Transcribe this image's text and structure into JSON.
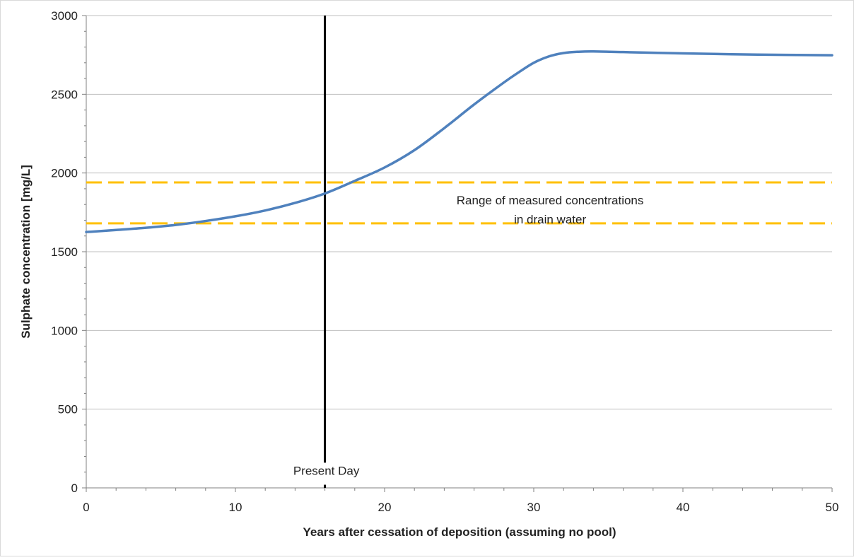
{
  "chart_data": {
    "type": "line",
    "title": "",
    "xlabel": "Years after cessation of deposition (assuming no pool)",
    "ylabel": "Sulphate concentration [mg/L]",
    "xlim": [
      0,
      50
    ],
    "ylim": [
      0,
      3000
    ],
    "x_ticks": [
      0,
      10,
      20,
      30,
      40,
      50
    ],
    "y_ticks": [
      0,
      500,
      1000,
      1500,
      2000,
      2500,
      3000
    ],
    "x_tick_labels": [
      "0",
      "10",
      "20",
      "30",
      "40",
      "50"
    ],
    "y_tick_labels": [
      "0",
      "500",
      "1000",
      "1500",
      "2000",
      "2500",
      "3000"
    ],
    "grid": "horizontal",
    "series": [
      {
        "color": "#4f81bd",
        "x": [
          0,
          2,
          4,
          6,
          8,
          10,
          12,
          14,
          16,
          18,
          20,
          22,
          24,
          26,
          28,
          29,
          30,
          31,
          32,
          33,
          34,
          36,
          40,
          45,
          50
        ],
        "y": [
          1625,
          1638,
          1652,
          1670,
          1695,
          1725,
          1762,
          1810,
          1870,
          1950,
          2035,
          2145,
          2285,
          2435,
          2575,
          2640,
          2700,
          2740,
          2762,
          2770,
          2772,
          2768,
          2760,
          2752,
          2748
        ]
      }
    ],
    "reference_lines": [
      {
        "orientation": "horizontal",
        "value": 1940,
        "color": "#ffc000",
        "style": "dashed"
      },
      {
        "orientation": "horizontal",
        "value": 1680,
        "color": "#ffc000",
        "style": "dashed"
      },
      {
        "orientation": "vertical",
        "value": 16,
        "color": "#000000",
        "style": "solid",
        "label": "Present Day"
      }
    ],
    "annotations": [
      {
        "text_lines": [
          "Range of measured concentrations",
          "in drain water"
        ],
        "x": 31,
        "y": 1800
      }
    ],
    "colors": {
      "line": "#4f81bd",
      "range": "#ffc000",
      "present": "#000000",
      "grid": "#bfbfbf",
      "axis": "#808080"
    }
  }
}
